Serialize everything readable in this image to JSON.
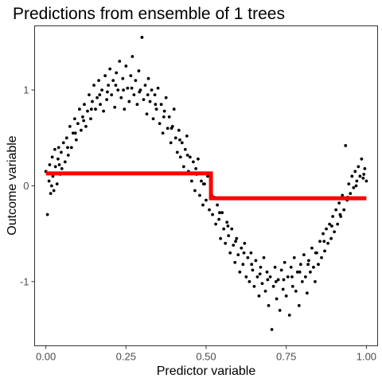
{
  "chart_data": {
    "type": "scatter",
    "title": "Predictions from ensemble of 1 trees",
    "xlabel": "Predictor variable",
    "ylabel": "Outcome variable",
    "xlim": [
      -0.035,
      1.035
    ],
    "ylim": [
      -1.67,
      1.67
    ],
    "x_ticks": [
      0.0,
      0.25,
      0.5,
      0.75,
      1.0
    ],
    "x_tick_labels": [
      "0.00",
      "0.25",
      "0.50",
      "0.75",
      "1.00"
    ],
    "y_ticks": [
      -1,
      0,
      1
    ],
    "y_tick_labels": [
      "-1",
      "0",
      "1"
    ],
    "grid": false,
    "legend": "none",
    "series": [
      {
        "kind": "points",
        "color": "#000000",
        "description_function": "y ≈ sin(2πx) + noise(sd≈0.2)",
        "points": [
          [
            0.0,
            0.15
          ],
          [
            0.005,
            -0.3
          ],
          [
            0.01,
            0.05
          ],
          [
            0.012,
            0.22
          ],
          [
            0.015,
            -0.08
          ],
          [
            0.02,
            0.3
          ],
          [
            0.022,
            0.1
          ],
          [
            0.025,
            -0.05
          ],
          [
            0.028,
            0.38
          ],
          [
            0.03,
            0.2
          ],
          [
            0.035,
            0.02
          ],
          [
            0.038,
            0.28
          ],
          [
            0.04,
            0.4
          ],
          [
            0.045,
            0.12
          ],
          [
            0.048,
            0.35
          ],
          [
            0.05,
            0.18
          ],
          [
            0.055,
            0.45
          ],
          [
            0.06,
            0.25
          ],
          [
            0.065,
            0.5
          ],
          [
            0.07,
            0.32
          ],
          [
            0.075,
            0.62
          ],
          [
            0.08,
            0.4
          ],
          [
            0.085,
            0.55
          ],
          [
            0.09,
            0.7
          ],
          [
            0.095,
            0.48
          ],
          [
            0.1,
            0.65
          ],
          [
            0.105,
            0.8
          ],
          [
            0.11,
            0.58
          ],
          [
            0.115,
            0.72
          ],
          [
            0.12,
            0.85
          ],
          [
            0.125,
            0.62
          ],
          [
            0.13,
            0.78
          ],
          [
            0.135,
            0.95
          ],
          [
            0.14,
            0.7
          ],
          [
            0.145,
            0.88
          ],
          [
            0.15,
            1.05
          ],
          [
            0.155,
            0.8
          ],
          [
            0.16,
            0.92
          ],
          [
            0.165,
            1.1
          ],
          [
            0.17,
            0.85
          ],
          [
            0.175,
            1.0
          ],
          [
            0.18,
            0.78
          ],
          [
            0.185,
            1.15
          ],
          [
            0.19,
            0.9
          ],
          [
            0.195,
            1.05
          ],
          [
            0.2,
            1.22
          ],
          [
            0.205,
            0.95
          ],
          [
            0.21,
            1.1
          ],
          [
            0.215,
            0.82
          ],
          [
            0.22,
            1.18
          ],
          [
            0.225,
            1.0
          ],
          [
            0.23,
            1.3
          ],
          [
            0.235,
            0.92
          ],
          [
            0.24,
            1.12
          ],
          [
            0.245,
            0.8
          ],
          [
            0.25,
            1.25
          ],
          [
            0.255,
            1.02
          ],
          [
            0.26,
            0.88
          ],
          [
            0.265,
            1.15
          ],
          [
            0.27,
            1.35
          ],
          [
            0.275,
            0.95
          ],
          [
            0.28,
            1.1
          ],
          [
            0.285,
            0.85
          ],
          [
            0.29,
            1.2
          ],
          [
            0.295,
            1.0
          ],
          [
            0.3,
            1.55
          ],
          [
            0.305,
            0.9
          ],
          [
            0.31,
            1.05
          ],
          [
            0.315,
            0.75
          ],
          [
            0.32,
            1.12
          ],
          [
            0.325,
            0.88
          ],
          [
            0.33,
            1.0
          ],
          [
            0.335,
            0.7
          ],
          [
            0.34,
            0.95
          ],
          [
            0.345,
            0.8
          ],
          [
            0.35,
            1.02
          ],
          [
            0.355,
            0.65
          ],
          [
            0.36,
            0.85
          ],
          [
            0.365,
            0.55
          ],
          [
            0.37,
            0.78
          ],
          [
            0.375,
            0.92
          ],
          [
            0.38,
            0.6
          ],
          [
            0.385,
            0.72
          ],
          [
            0.39,
            0.45
          ],
          [
            0.395,
            0.62
          ],
          [
            0.4,
            0.8
          ],
          [
            0.405,
            0.5
          ],
          [
            0.41,
            0.35
          ],
          [
            0.415,
            0.58
          ],
          [
            0.42,
            0.3
          ],
          [
            0.425,
            0.45
          ],
          [
            0.43,
            0.2
          ],
          [
            0.435,
            0.38
          ],
          [
            0.44,
            0.52
          ],
          [
            0.445,
            0.15
          ],
          [
            0.45,
            0.3
          ],
          [
            0.455,
            0.05
          ],
          [
            0.46,
            0.25
          ],
          [
            0.465,
            -0.05
          ],
          [
            0.47,
            0.12
          ],
          [
            0.475,
            0.28
          ],
          [
            0.48,
            -0.1
          ],
          [
            0.485,
            0.05
          ],
          [
            0.49,
            -0.2
          ],
          [
            0.495,
            0.02
          ],
          [
            0.5,
            -0.15
          ],
          [
            0.505,
            0.1
          ],
          [
            0.51,
            -0.25
          ],
          [
            0.515,
            -0.05
          ],
          [
            0.52,
            -0.3
          ],
          [
            0.525,
            -0.12
          ],
          [
            0.53,
            -0.4
          ],
          [
            0.535,
            -0.2
          ],
          [
            0.54,
            -0.35
          ],
          [
            0.545,
            -0.55
          ],
          [
            0.55,
            -0.28
          ],
          [
            0.555,
            -0.45
          ],
          [
            0.56,
            -0.6
          ],
          [
            0.565,
            -0.38
          ],
          [
            0.57,
            -0.52
          ],
          [
            0.575,
            -0.7
          ],
          [
            0.58,
            -0.45
          ],
          [
            0.585,
            -0.62
          ],
          [
            0.59,
            -0.8
          ],
          [
            0.595,
            -0.55
          ],
          [
            0.6,
            -0.72
          ],
          [
            0.605,
            -0.9
          ],
          [
            0.61,
            -0.65
          ],
          [
            0.615,
            -0.82
          ],
          [
            0.62,
            -0.6
          ],
          [
            0.625,
            -0.95
          ],
          [
            0.63,
            -0.75
          ],
          [
            0.635,
            -1.0
          ],
          [
            0.64,
            -0.7
          ],
          [
            0.645,
            -0.88
          ],
          [
            0.65,
            -1.05
          ],
          [
            0.655,
            -0.78
          ],
          [
            0.66,
            -0.95
          ],
          [
            0.665,
            -1.15
          ],
          [
            0.67,
            -0.85
          ],
          [
            0.675,
            -1.02
          ],
          [
            0.68,
            -0.75
          ],
          [
            0.685,
            -1.1
          ],
          [
            0.69,
            -0.9
          ],
          [
            0.695,
            -1.25
          ],
          [
            0.7,
            -0.95
          ],
          [
            0.705,
            -1.5
          ],
          [
            0.71,
            -1.05
          ],
          [
            0.715,
            -0.85
          ],
          [
            0.72,
            -1.18
          ],
          [
            0.725,
            -0.98
          ],
          [
            0.73,
            -1.3
          ],
          [
            0.735,
            -0.88
          ],
          [
            0.74,
            -1.08
          ],
          [
            0.745,
            -0.8
          ],
          [
            0.75,
            -1.15
          ],
          [
            0.755,
            -0.95
          ],
          [
            0.76,
            -1.35
          ],
          [
            0.765,
            -0.85
          ],
          [
            0.77,
            -1.05
          ],
          [
            0.775,
            -0.75
          ],
          [
            0.78,
            -1.1
          ],
          [
            0.785,
            -0.9
          ],
          [
            0.79,
            -1.25
          ],
          [
            0.795,
            -0.82
          ],
          [
            0.8,
            -1.0
          ],
          [
            0.805,
            -0.72
          ],
          [
            0.81,
            -0.95
          ],
          [
            0.815,
            -1.12
          ],
          [
            0.82,
            -0.78
          ],
          [
            0.825,
            -0.9
          ],
          [
            0.83,
            -0.65
          ],
          [
            0.835,
            -0.85
          ],
          [
            0.84,
            -1.0
          ],
          [
            0.845,
            -0.7
          ],
          [
            0.85,
            -0.82
          ],
          [
            0.855,
            -0.58
          ],
          [
            0.86,
            -0.75
          ],
          [
            0.865,
            -0.5
          ],
          [
            0.87,
            -0.68
          ],
          [
            0.875,
            -0.45
          ],
          [
            0.88,
            -0.6
          ],
          [
            0.885,
            -0.4
          ],
          [
            0.89,
            -0.55
          ],
          [
            0.895,
            -0.32
          ],
          [
            0.9,
            -0.48
          ],
          [
            0.905,
            -0.25
          ],
          [
            0.91,
            -0.4
          ],
          [
            0.915,
            -0.18
          ],
          [
            0.92,
            -0.32
          ],
          [
            0.925,
            -0.1
          ],
          [
            0.93,
            -0.25
          ],
          [
            0.935,
            0.42
          ],
          [
            0.94,
            -0.15
          ],
          [
            0.945,
            0.02
          ],
          [
            0.95,
            -0.08
          ],
          [
            0.955,
            0.1
          ],
          [
            0.96,
            -0.02
          ],
          [
            0.965,
            0.15
          ],
          [
            0.97,
            0.05
          ],
          [
            0.975,
            0.2
          ],
          [
            0.98,
            0.1
          ],
          [
            0.985,
            0.28
          ],
          [
            0.99,
            0.08
          ],
          [
            0.995,
            0.18
          ],
          [
            1.0,
            0.05
          ],
          [
            0.018,
            0.0
          ],
          [
            0.042,
            0.22
          ],
          [
            0.068,
            0.4
          ],
          [
            0.092,
            0.55
          ],
          [
            0.118,
            0.68
          ],
          [
            0.142,
            0.8
          ],
          [
            0.168,
            0.95
          ],
          [
            0.192,
            0.98
          ],
          [
            0.218,
            1.05
          ],
          [
            0.242,
            1.0
          ],
          [
            0.268,
            1.02
          ],
          [
            0.292,
            0.98
          ],
          [
            0.318,
            0.95
          ],
          [
            0.342,
            0.85
          ],
          [
            0.368,
            0.72
          ],
          [
            0.392,
            0.6
          ],
          [
            0.418,
            0.48
          ],
          [
            0.442,
            0.32
          ],
          [
            0.468,
            0.18
          ],
          [
            0.492,
            0.02
          ],
          [
            0.518,
            -0.1
          ],
          [
            0.542,
            -0.28
          ],
          [
            0.568,
            -0.42
          ],
          [
            0.592,
            -0.58
          ],
          [
            0.618,
            -0.7
          ],
          [
            0.642,
            -0.82
          ],
          [
            0.668,
            -0.92
          ],
          [
            0.692,
            -0.98
          ],
          [
            0.718,
            -1.0
          ],
          [
            0.742,
            -0.98
          ],
          [
            0.768,
            -0.95
          ],
          [
            0.792,
            -0.9
          ],
          [
            0.818,
            -0.82
          ],
          [
            0.842,
            -0.7
          ],
          [
            0.868,
            -0.58
          ],
          [
            0.892,
            -0.42
          ],
          [
            0.918,
            -0.3
          ],
          [
            0.942,
            -0.12
          ],
          [
            0.968,
            0.0
          ],
          [
            0.992,
            0.12
          ]
        ]
      },
      {
        "kind": "step-line",
        "color": "#ff0000",
        "steps": [
          {
            "x_start": 0.0,
            "x_end": 0.515,
            "y": 0.13
          },
          {
            "x_start": 0.515,
            "x_end": 1.0,
            "y": -0.13
          }
        ]
      }
    ]
  }
}
